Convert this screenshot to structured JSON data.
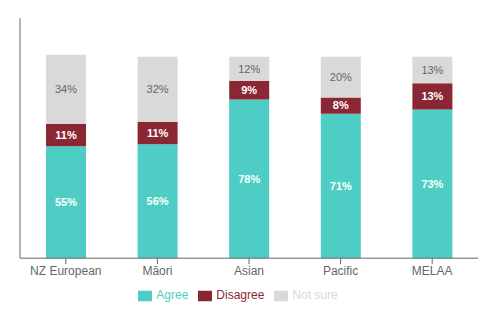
{
  "chart_data": {
    "type": "bar",
    "stacked": true,
    "categories": [
      "NZ European",
      "Māori",
      "Asian",
      "Pacific",
      "MELAA"
    ],
    "series": [
      {
        "name": "Agree",
        "color": "#4ECDC4",
        "values": [
          55,
          56,
          78,
          71,
          73
        ],
        "value_labels": [
          "55%",
          "56%",
          "78%",
          "71%",
          "73%"
        ]
      },
      {
        "name": "Disagree",
        "color": "#8B2635",
        "values": [
          11,
          11,
          9,
          8,
          13
        ],
        "value_labels": [
          "11%",
          "11%",
          "9%",
          "8%",
          "13%"
        ]
      },
      {
        "name": "Not sure",
        "color": "#D9D9D9",
        "values": [
          34,
          32,
          12,
          20,
          13
        ],
        "value_labels": [
          "34%",
          "32%",
          "12%",
          "20%",
          "13%"
        ]
      }
    ],
    "ylim": [
      0,
      118
    ],
    "data_labels": true,
    "tick_labels": "x",
    "grid": false,
    "legend": "bottom"
  }
}
